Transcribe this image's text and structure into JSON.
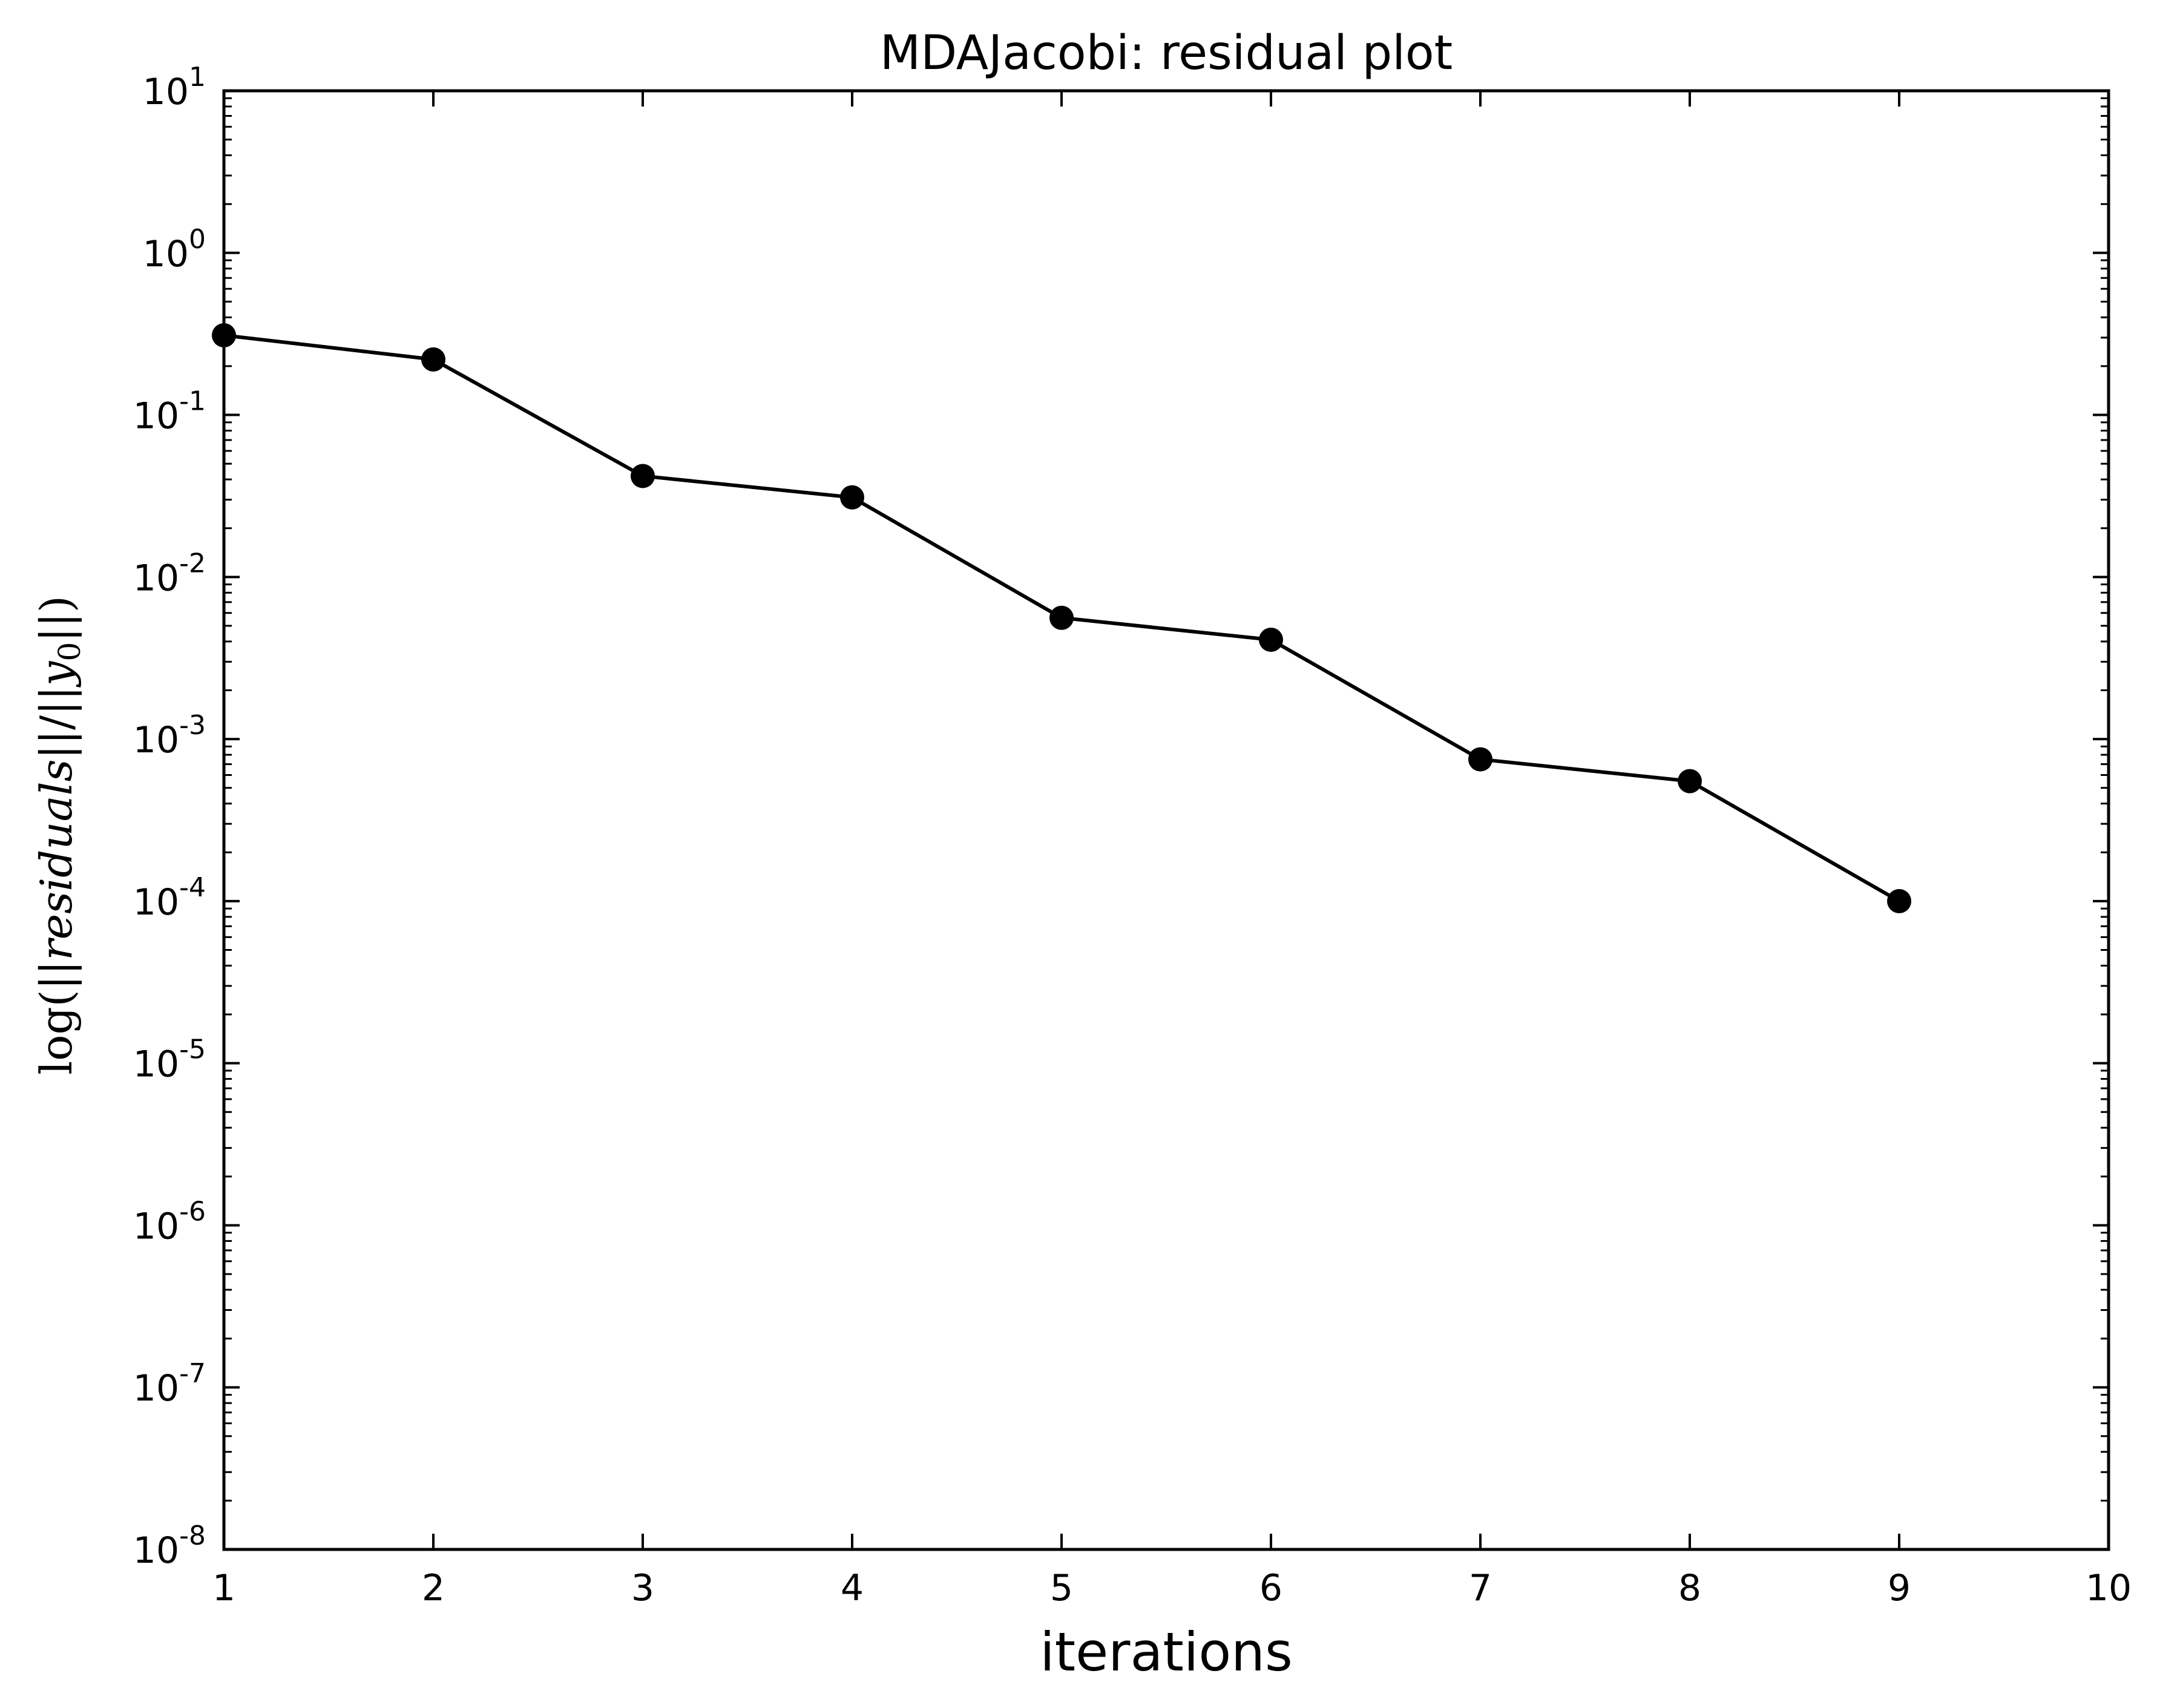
{
  "chart_data": {
    "type": "line",
    "title": "MDAJacobi: residual plot",
    "xlabel": "iterations",
    "ylabel": {
      "prefix": "log(||",
      "var1": "residuals",
      "middle": "||/||",
      "var2": "y",
      "sub": "0",
      "suffix": "||)"
    },
    "xlim": [
      1,
      10
    ],
    "ylim": [
      1e-08,
      10
    ],
    "yscale": "log",
    "grid": false,
    "x_ticks": [
      "1",
      "2",
      "3",
      "4",
      "5",
      "6",
      "7",
      "8",
      "9",
      "10"
    ],
    "y_ticks": [
      {
        "base": "10",
        "exp": "-8"
      },
      {
        "base": "10",
        "exp": "-7"
      },
      {
        "base": "10",
        "exp": "-6"
      },
      {
        "base": "10",
        "exp": "-5"
      },
      {
        "base": "10",
        "exp": "-4"
      },
      {
        "base": "10",
        "exp": "-3"
      },
      {
        "base": "10",
        "exp": "-2"
      },
      {
        "base": "10",
        "exp": "-1"
      },
      {
        "base": "10",
        "exp": "0"
      },
      {
        "base": "10",
        "exp": "1"
      }
    ],
    "series": [
      {
        "x": [
          1,
          2,
          3,
          4,
          5,
          6,
          7,
          8,
          9
        ],
        "y": [
          0.31,
          0.22,
          0.042,
          0.031,
          0.0056,
          0.0041,
          0.00075,
          0.00055,
          0.0001
        ],
        "color": "#000000",
        "marker": "circle"
      }
    ]
  }
}
